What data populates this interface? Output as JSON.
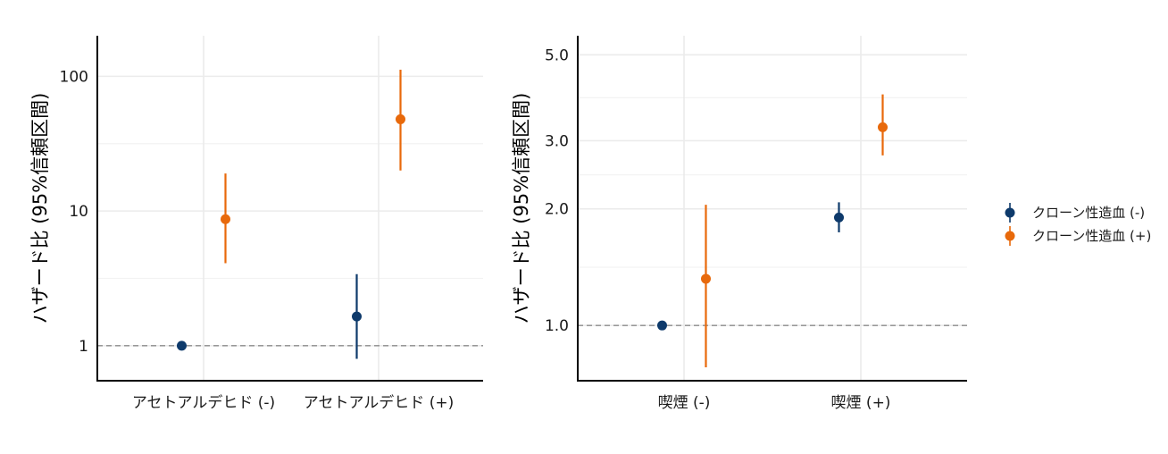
{
  "colors": {
    "negative": "#0e3a6b",
    "positive": "#e8690b"
  },
  "legend": {
    "entries": [
      {
        "label": "クローン性造血 (-)",
        "color": "#0e3a6b"
      },
      {
        "label": "クローン性造血 (+)",
        "color": "#e8690b"
      }
    ]
  },
  "chart_data": [
    {
      "type": "scatter",
      "title": "",
      "ylabel": "ハザード比 (95%信頼区間)",
      "xlabel": "",
      "yscale": "log",
      "ylim": [
        0.55,
        200
      ],
      "yticks": [
        1,
        10,
        100
      ],
      "ytick_labels": [
        "1",
        "10",
        "100"
      ],
      "reference_line": 1,
      "grid": true,
      "categories": [
        "アセトアルデヒド (-)",
        "アセトアルデヒド (+)"
      ],
      "series": [
        {
          "name": "クローン性造血 (-)",
          "color": "#0e3a6b",
          "points": [
            {
              "category": "アセトアルデヒド (-)",
              "estimate": 1.0,
              "lower": 1.0,
              "upper": 1.0
            },
            {
              "category": "アセトアルデヒド (+)",
              "estimate": 1.65,
              "lower": 0.8,
              "upper": 3.4
            }
          ]
        },
        {
          "name": "クローン性造血 (+)",
          "color": "#e8690b",
          "points": [
            {
              "category": "アセトアルデヒド (-)",
              "estimate": 8.7,
              "lower": 4.1,
              "upper": 19.0
            },
            {
              "category": "アセトアルデヒド (+)",
              "estimate": 48.0,
              "lower": 20.0,
              "upper": 112.0
            }
          ]
        }
      ]
    },
    {
      "type": "scatter",
      "title": "",
      "ylabel": "ハザード比 (95%信頼区間)",
      "xlabel": "",
      "yscale": "log",
      "ylim": [
        0.72,
        5.6
      ],
      "yticks": [
        1.0,
        2.0,
        3.0,
        5.0
      ],
      "ytick_labels": [
        "1.0",
        "2.0",
        "3.0",
        "5.0"
      ],
      "reference_line": 1,
      "grid": true,
      "categories": [
        "喫煙 (-)",
        "喫煙 (+)"
      ],
      "series": [
        {
          "name": "クローン性造血 (-)",
          "color": "#0e3a6b",
          "points": [
            {
              "category": "喫煙 (-)",
              "estimate": 1.0,
              "lower": 1.0,
              "upper": 1.0
            },
            {
              "category": "喫煙 (+)",
              "estimate": 1.9,
              "lower": 1.74,
              "upper": 2.08
            }
          ]
        },
        {
          "name": "クローン性造血 (+)",
          "color": "#e8690b",
          "points": [
            {
              "category": "喫煙 (-)",
              "estimate": 1.32,
              "lower": 0.78,
              "upper": 2.05
            },
            {
              "category": "喫煙 (+)",
              "estimate": 3.25,
              "lower": 2.75,
              "upper": 3.95
            }
          ]
        }
      ]
    }
  ]
}
